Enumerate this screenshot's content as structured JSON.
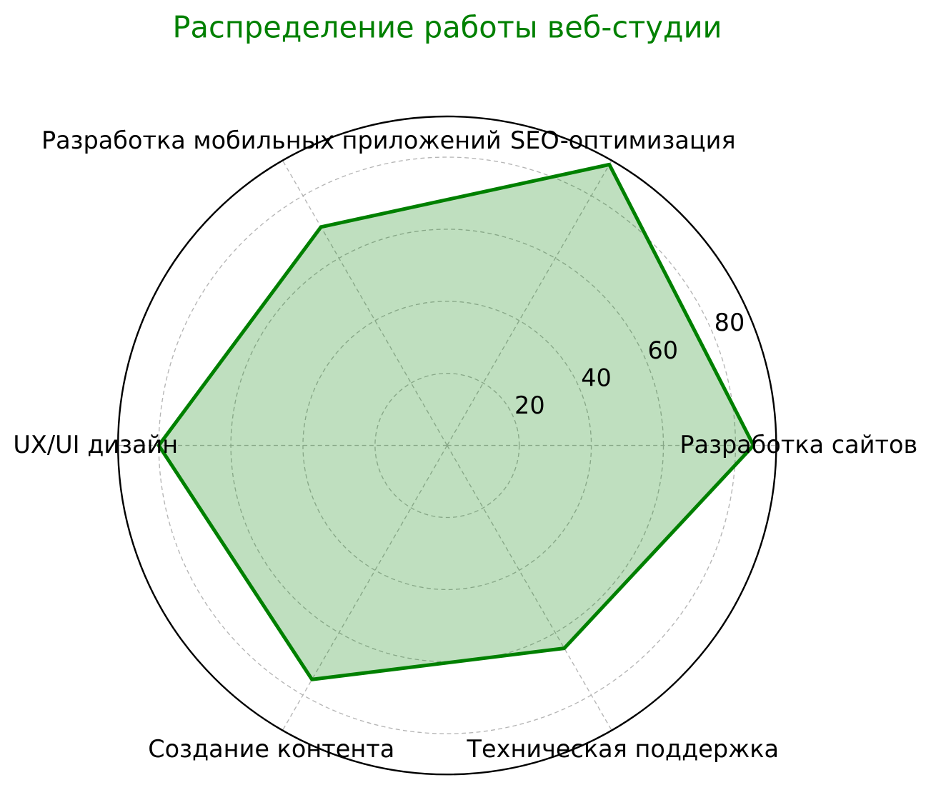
{
  "chart_data": {
    "type": "radar",
    "title": "Распределение работы веб-студии",
    "categories": [
      "Разработка сайтов",
      "SEO-оптимизация",
      "Разработка мобильных приложений",
      "UX/UI дизайн",
      "Создание контента",
      "Техническая поддержка"
    ],
    "series": [
      {
        "name": "Распределение работы веб-студии",
        "values": [
          85,
          90,
          70,
          80,
          75,
          65
        ]
      }
    ],
    "axis": {
      "r_ticks": [
        20,
        40,
        60,
        80
      ],
      "r_tick_labels": [
        "20",
        "40",
        "60",
        "80"
      ],
      "r_min": 0,
      "r_max": 91.3,
      "angle_start_deg": 0,
      "direction": "counterclockwise",
      "grid": true,
      "grid_style": "dashed"
    },
    "colors": {
      "title": "#008000",
      "line": "#008000",
      "fill": "#008000",
      "fill_opacity": 0.25,
      "grid": "#b5b5b5",
      "outline": "#000000",
      "text": "#000000"
    }
  }
}
